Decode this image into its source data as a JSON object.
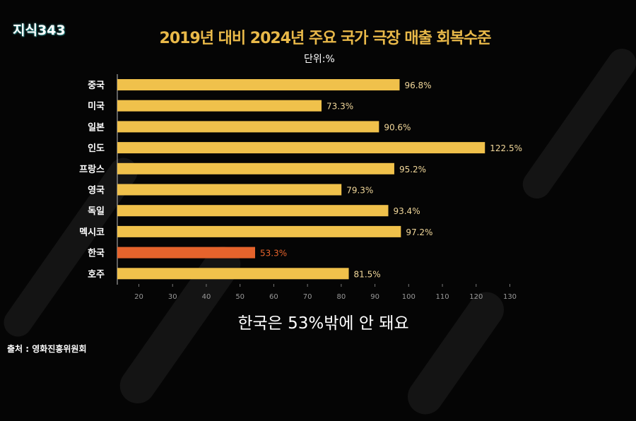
{
  "logo": "지식343",
  "colors": {
    "bar": "#f0c14b",
    "highlight": "#e5632c",
    "label": "#f1d79a",
    "highlight_label": "#e5632c"
  },
  "chart_data": {
    "type": "bar",
    "orientation": "horizontal",
    "title": "2019년 대비 2024년 주요 국가 극장 매출 회복수준",
    "subtitle": "단위:%",
    "categories": [
      "중국",
      "미국",
      "일본",
      "인도",
      "프랑스",
      "영국",
      "독일",
      "멕시코",
      "한국",
      "호주"
    ],
    "values": [
      96.8,
      73.3,
      90.6,
      122.5,
      95.2,
      79.3,
      93.4,
      97.2,
      53.3,
      81.5
    ],
    "data_labels": [
      "96.8%",
      "73.3%",
      "90.6%",
      "122.5%",
      "95.2%",
      "79.3%",
      "93.4%",
      "97.2%",
      "53.3%",
      "81.5%"
    ],
    "highlight": "한국",
    "xticks": [
      20,
      30,
      40,
      50,
      60,
      70,
      80,
      90,
      100,
      110,
      120,
      130
    ],
    "xlim": [
      12,
      130
    ],
    "grid": false
  },
  "caption": "한국은 53%밖에 안 돼요",
  "source": "출처 : 영화진흥위원회"
}
